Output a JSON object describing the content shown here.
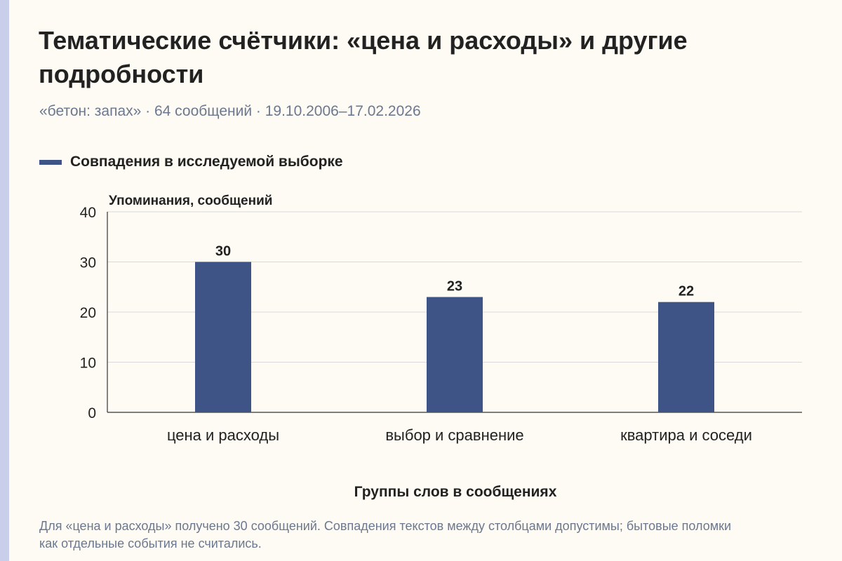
{
  "header": {
    "title": "Тематические счётчики: «цена и расходы» и другие подробности",
    "subtitle": "«бетон: запах» · 64 сообщений · 19.10.2006–17.02.2026"
  },
  "legend": {
    "label": "Совпадения в исследуемой выборке"
  },
  "footer": {
    "caption": "Для «цена и расходы» получено 30 сообщений. Совпадения текстов между столбцами допустимы; бытовые поломки как отдельные события не считались."
  },
  "colors": {
    "bar": "#3e5487",
    "background": "#fdfbf3",
    "accent_strip": "#c9cfea"
  },
  "chart_data": {
    "type": "bar",
    "categories": [
      "цена и расходы",
      "выбор и сравнение",
      "квартира и соседи"
    ],
    "series": [
      {
        "name": "Совпадения в исследуемой выборке",
        "values": [
          30,
          23,
          22
        ]
      }
    ],
    "data_labels": [
      "30",
      "23",
      "22"
    ],
    "ylabel": "Упоминания, сообщений",
    "xlabel": "Группы слов в сообщениях",
    "ylim": [
      0,
      40
    ],
    "yticks": [
      0,
      10,
      20,
      30,
      40
    ],
    "ytick_labels": [
      "0",
      "10",
      "20",
      "30",
      "40"
    ],
    "grid": true,
    "legend_position": "top-left"
  }
}
